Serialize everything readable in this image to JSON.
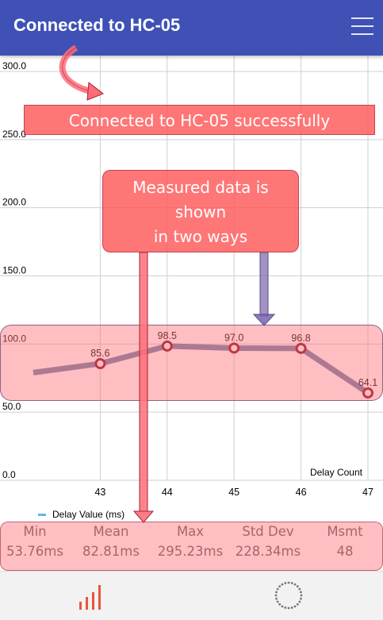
{
  "appbar": {
    "title": "Connected to HC-05",
    "menu_icon": "hamburger-menu-icon",
    "color": "#3f51b5"
  },
  "chart_data": {
    "type": "line",
    "x": [
      42,
      43,
      44,
      45,
      46,
      47
    ],
    "series": [
      {
        "name": "Delay Value (ms)",
        "values": [
          79.0,
          85.6,
          98.5,
          97.0,
          96.8,
          64.1
        ]
      }
    ],
    "data_labels": [
      "85.6",
      "98.5",
      "97.0",
      "96.8",
      "64.1"
    ],
    "y_ticks": [
      "300.0",
      "250.0",
      "200.0",
      "150.0",
      "100.0",
      "50.0",
      "0.0"
    ],
    "x_ticks": [
      "43",
      "44",
      "45",
      "46",
      "47"
    ],
    "xlabel": "Delay Count",
    "ylim": [
      0,
      300
    ],
    "xlim": [
      42,
      47
    ],
    "grid": true,
    "legend": "bottom-left",
    "line_color": "#6a82a8",
    "point_color": "#8b0a1a"
  },
  "stats": {
    "items": [
      {
        "label": "Min",
        "value": "53.76ms"
      },
      {
        "label": "Mean",
        "value": "82.81ms"
      },
      {
        "label": "Max",
        "value": "295.23ms"
      },
      {
        "label": "Std Dev",
        "value": "228.34ms"
      },
      {
        "label": "Msmt",
        "value": "48"
      }
    ]
  },
  "annotations": {
    "connected_msg": "Connected to HC-05 successfully",
    "measured_line1": "Measured data is",
    "measured_line2": "shown",
    "measured_line3": "in two ways"
  },
  "bottomnav": {
    "items": [
      {
        "icon": "bar-chart-icon",
        "color": "#e8553d"
      },
      {
        "icon": "loading-spinner-icon",
        "color": "#666666"
      }
    ]
  }
}
